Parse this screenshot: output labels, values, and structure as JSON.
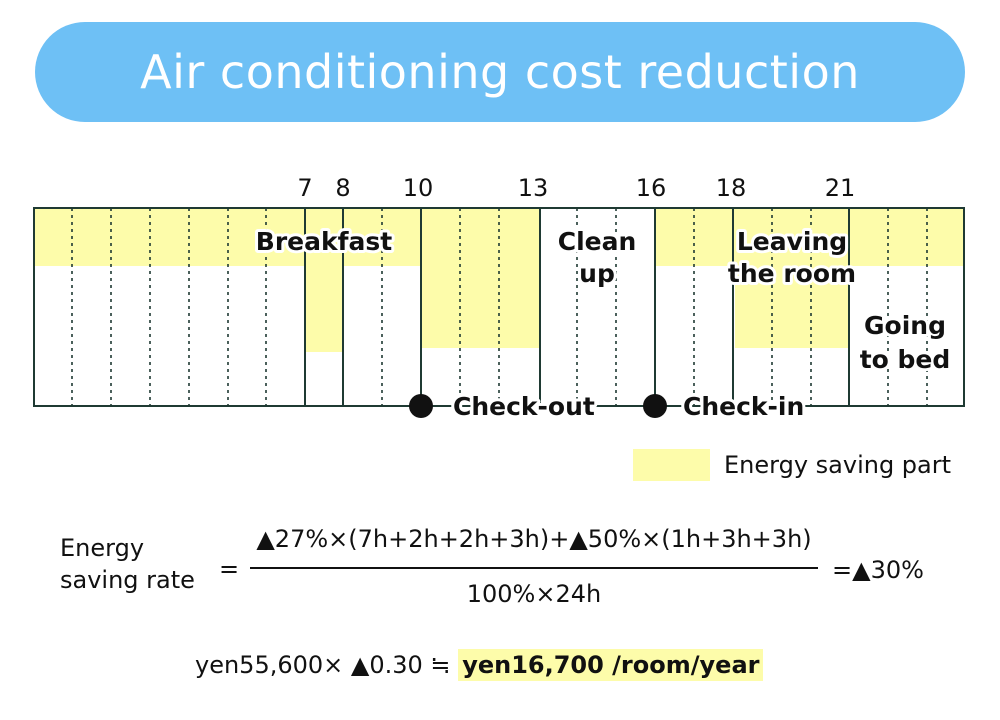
{
  "title": "Air conditioning cost reduction",
  "hour_ticks": [
    "7",
    "8",
    "10",
    "13",
    "16",
    "18",
    "21"
  ],
  "periods": {
    "breakfast": "Breakfast",
    "clean_up": [
      "Clean",
      "up"
    ],
    "leaving_room": [
      "Leaving",
      "the room"
    ],
    "going_to_bed": [
      "Going",
      "to bed"
    ]
  },
  "events": {
    "check_out": "Check-out",
    "check_in": "Check-in"
  },
  "legend": {
    "label": "Energy saving part",
    "color": "#fdfcaa"
  },
  "formula": {
    "lhs_line1": "Energy",
    "lhs_line2": "saving rate",
    "equals": "=",
    "numerator": "▲27%×(7h+2h+2h+3h)+▲50%×(1h+3h+3h)",
    "denominator": "100%×24h",
    "result": "=▲30%"
  },
  "summary": {
    "calc": "yen55,600× ▲0.30 ≒ ",
    "answer": "yen16,700 /room/year"
  },
  "colors": {
    "title_bg": "#6ec0f5",
    "saving": "#fdfcaa",
    "grid": "#1f3a33"
  }
}
